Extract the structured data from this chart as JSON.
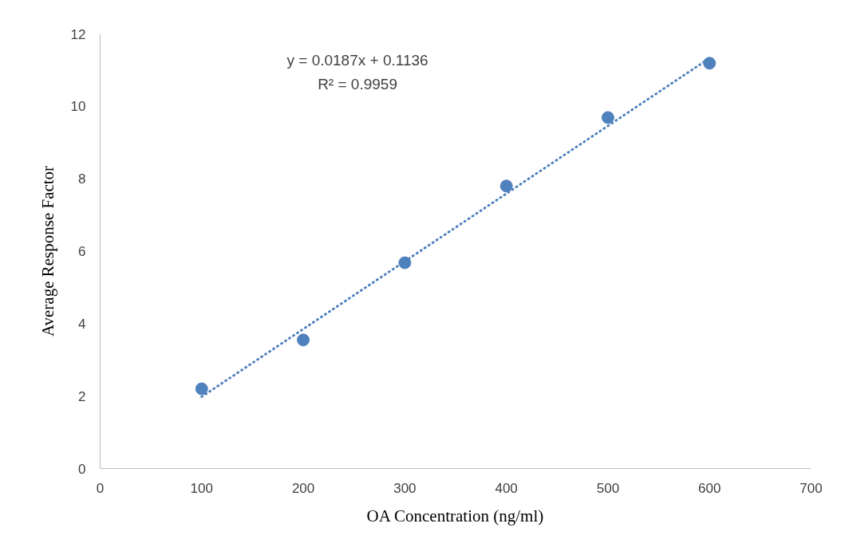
{
  "chart_data": {
    "type": "scatter",
    "xlabel": "OA Concentration (ng/ml)",
    "ylabel": "Average Response Factor",
    "xlim": [
      0,
      700
    ],
    "xticks": [
      0,
      100,
      200,
      300,
      400,
      500,
      600,
      700
    ],
    "ylim": [
      0,
      12
    ],
    "yticks": [
      0,
      2,
      4,
      6,
      8,
      10,
      12
    ],
    "grid": false,
    "marker": "circle",
    "series": [
      {
        "color": "#4f81bd",
        "x": [
          100,
          200,
          300,
          400,
          500,
          600
        ],
        "values": [
          2.2,
          3.55,
          5.68,
          7.8,
          9.69,
          11.19
        ]
      },
      {
        "type": "line",
        "color": "#4f81bd",
        "line_style": "dotted",
        "marker": "none",
        "x": [
          100,
          600
        ],
        "values": [
          1.98,
          11.33
        ]
      }
    ],
    "annotations": [
      "y = 0.0187x + 0.1136",
      "R² = 0.9959"
    ]
  }
}
